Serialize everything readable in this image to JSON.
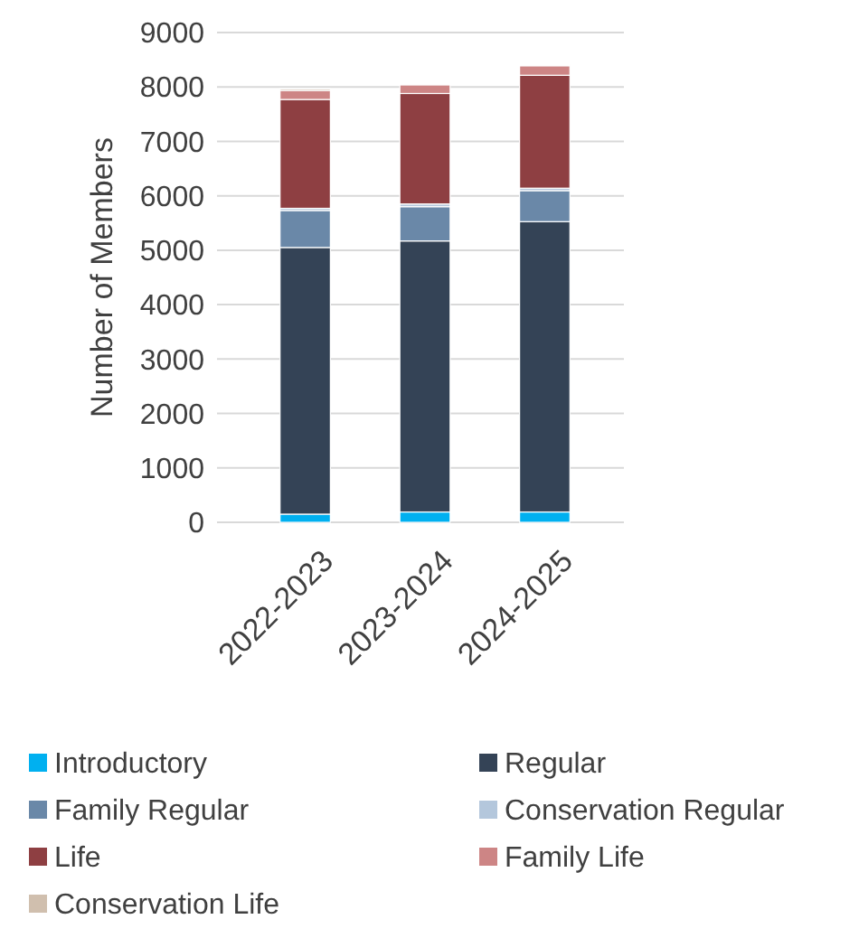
{
  "chart_data": {
    "type": "bar",
    "stacked": true,
    "ylabel": "Number of Members",
    "categories": [
      "2022-2023",
      "2023-2024",
      "2024-2025"
    ],
    "ylim": [
      0,
      9000
    ],
    "yticks": [
      0,
      1000,
      2000,
      3000,
      4000,
      5000,
      6000,
      7000,
      8000,
      9000
    ],
    "grid": "y",
    "legend": "bottom",
    "series": [
      {
        "name": "Introductory",
        "color": "#00b0f0",
        "values": [
          150,
          190,
          190
        ]
      },
      {
        "name": "Regular",
        "color": "#344356",
        "values": [
          4900,
          4980,
          5335
        ]
      },
      {
        "name": "Family Regular",
        "color": "#6a88a8",
        "values": [
          680,
          630,
          570
        ]
      },
      {
        "name": "Conservation Regular",
        "color": "#b4c7dc",
        "values": [
          40,
          50,
          45
        ]
      },
      {
        "name": "Life",
        "color": "#8e3f42",
        "values": [
          2000,
          2030,
          2075
        ]
      },
      {
        "name": "Family Life",
        "color": "#cd8585",
        "values": [
          165,
          160,
          175
        ]
      },
      {
        "name": "Conservation Life",
        "color": "#d0bfae",
        "values": [
          30,
          20,
          20
        ]
      }
    ]
  }
}
